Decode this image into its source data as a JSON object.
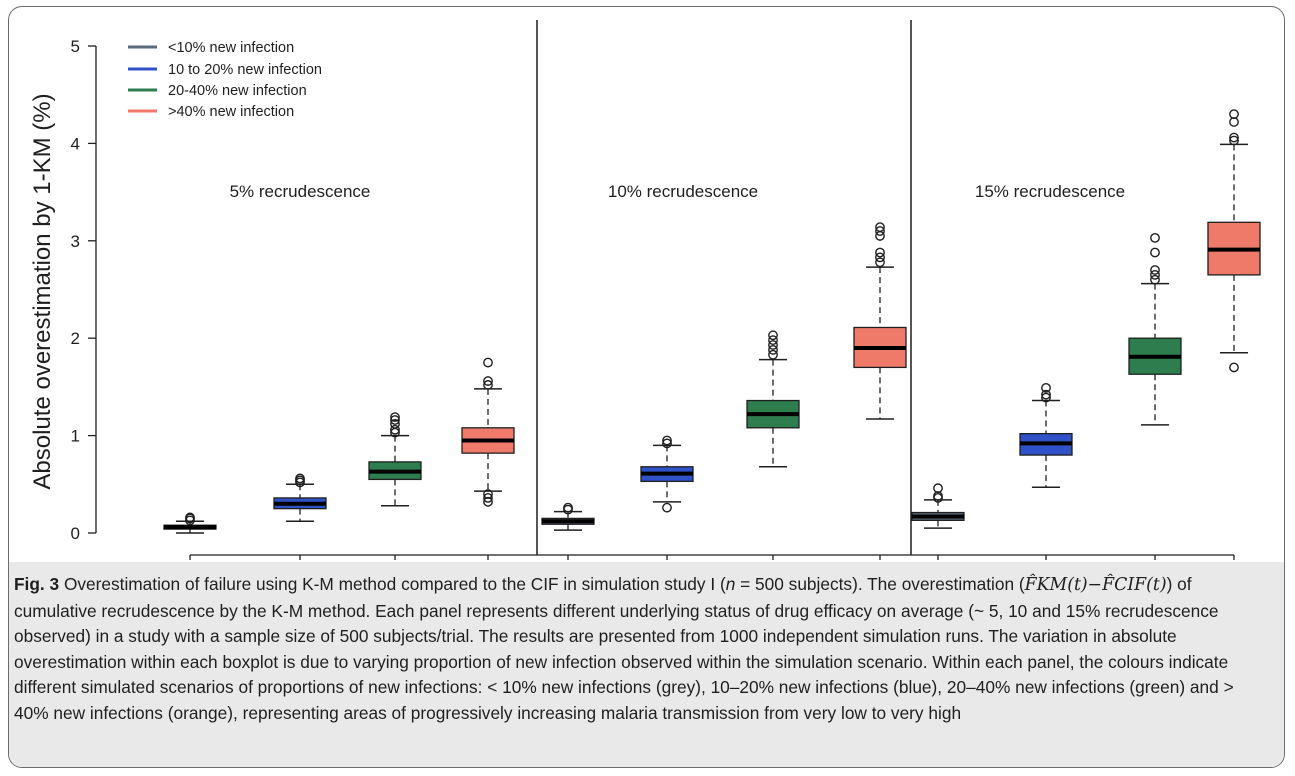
{
  "chart_data": {
    "type": "boxplot",
    "ylabel": "Absolute overestimation by 1-KM (%)",
    "ylim": [
      0,
      5
    ],
    "yticks": [
      0,
      1,
      2,
      3,
      4,
      5
    ],
    "legend": {
      "placement": "top-left",
      "entries": [
        {
          "label": "<10% new infection",
          "color": "#5a6b7a"
        },
        {
          "label": "10 to 20% new infection",
          "color": "#2f52c8"
        },
        {
          "label": "20-40% new infection",
          "color": "#2e7d4f"
        },
        {
          "label": ">40% new infection",
          "color": "#f07a6a"
        }
      ]
    },
    "panels": [
      {
        "title": "5% recrudescence",
        "boxes": [
          {
            "category": "<10% new infection",
            "min": 0.0,
            "q1": 0.04,
            "median": 0.06,
            "q3": 0.08,
            "max": 0.12,
            "outliers": [
              0.13,
              0.15,
              0.16
            ]
          },
          {
            "category": "10 to 20% new infection",
            "min": 0.12,
            "q1": 0.25,
            "median": 0.3,
            "q3": 0.36,
            "max": 0.5,
            "outliers": [
              0.52,
              0.54,
              0.56
            ]
          },
          {
            "category": "20-40% new infection",
            "min": 0.28,
            "q1": 0.55,
            "median": 0.63,
            "q3": 0.73,
            "max": 1.0,
            "outliers": [
              1.03,
              1.06,
              1.12,
              1.16,
              1.19
            ]
          },
          {
            "category": ">40% new infection",
            "min": 0.43,
            "q1": 0.82,
            "median": 0.95,
            "q3": 1.08,
            "max": 1.48,
            "outliers": [
              0.32,
              0.36,
              0.4,
              1.52,
              1.56,
              1.75
            ]
          }
        ]
      },
      {
        "title": "10% recrudescence",
        "boxes": [
          {
            "category": "<10% new infection",
            "min": 0.03,
            "q1": 0.09,
            "median": 0.12,
            "q3": 0.15,
            "max": 0.22,
            "outliers": [
              0.24,
              0.26
            ]
          },
          {
            "category": "10 to 20% new infection",
            "min": 0.32,
            "q1": 0.53,
            "median": 0.61,
            "q3": 0.68,
            "max": 0.9,
            "outliers": [
              0.26,
              0.92,
              0.95
            ]
          },
          {
            "category": "20-40% new infection",
            "min": 0.68,
            "q1": 1.08,
            "median": 1.22,
            "q3": 1.36,
            "max": 1.78,
            "outliers": [
              1.83,
              1.88,
              1.93,
              1.98,
              2.03
            ]
          },
          {
            "category": ">40% new infection",
            "min": 1.17,
            "q1": 1.7,
            "median": 1.9,
            "q3": 2.11,
            "max": 2.73,
            "outliers": [
              2.78,
              2.83,
              2.88,
              3.05,
              3.1,
              3.14
            ]
          }
        ]
      },
      {
        "title": "15% recrudescence",
        "boxes": [
          {
            "category": "<10% new infection",
            "min": 0.05,
            "q1": 0.13,
            "median": 0.17,
            "q3": 0.21,
            "max": 0.34,
            "outliers": [
              0.36,
              0.38,
              0.46
            ]
          },
          {
            "category": "10 to 20% new infection",
            "min": 0.47,
            "q1": 0.8,
            "median": 0.92,
            "q3": 1.02,
            "max": 1.36,
            "outliers": [
              1.39,
              1.42,
              1.49
            ]
          },
          {
            "category": "20-40% new infection",
            "min": 1.11,
            "q1": 1.63,
            "median": 1.81,
            "q3": 2.0,
            "max": 2.56,
            "outliers": [
              2.6,
              2.65,
              2.7,
              2.88,
              3.03
            ]
          },
          {
            "category": ">40% new infection",
            "min": 1.85,
            "q1": 2.65,
            "median": 2.91,
            "q3": 3.19,
            "max": 3.99,
            "outliers": [
              1.7,
              4.03,
              4.06,
              4.22,
              4.3
            ]
          }
        ]
      }
    ]
  },
  "caption": {
    "label": "Fig. 3",
    "part1": " Overestimation of failure using K-M method compared to the CIF in simulation study I (",
    "n_symbol": "n",
    "part2": " = 500 subjects). The overestimation (",
    "formula": "F̂KM(t)−F̂CIF(t)",
    "part3": ") of cumulative recrudescence by the K-M method. Each panel represents different underlying status of drug efficacy on average (~ 5, 10 and 15% recrudescence observed) in a study with a sample size of 500 subjects/trial. The results are presented from 1000 independent simulation runs. The variation in absolute overestimation within each boxplot is due to varying proportion of new infection observed within the simulation scenario. Within each panel, the colours indicate different simulated scenarios of proportions of new infections: < 10% new infections (grey), 10–20% new infections (blue), 20–40% new infections (green) and > 40% new infections (orange), representing areas of progressively increasing malaria transmission from very low to very high"
  }
}
